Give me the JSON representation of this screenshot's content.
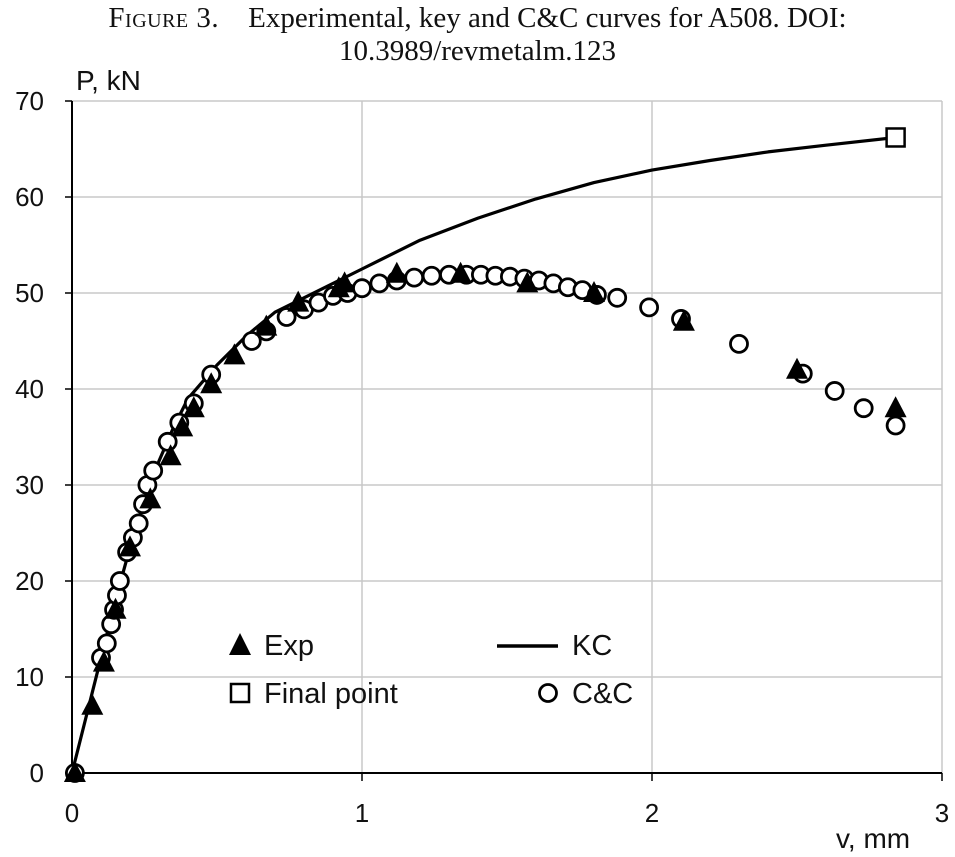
{
  "caption": {
    "label": "Figure 3.",
    "line1": "Experimental, key and C&C curves for A508. DOI:",
    "line2": "10.3989/revmetalm.123"
  },
  "chart_data": {
    "type": "scatter",
    "xlabel": "v, mm",
    "ylabel": "P, kN",
    "xlim": [
      0,
      3
    ],
    "ylim": [
      0,
      70
    ],
    "xticks": [
      0,
      1,
      2,
      3
    ],
    "yticks": [
      0,
      10,
      20,
      30,
      40,
      50,
      60,
      70
    ],
    "grid": true,
    "colors": {
      "marker": "#000000",
      "grid": "#c8c8c8",
      "line": "#000000"
    },
    "legend": {
      "placement": "inside-bottom",
      "entries": [
        {
          "label": "Exp",
          "marker": "triangle"
        },
        {
          "label": "KC",
          "marker": "line"
        },
        {
          "label": "Final point",
          "marker": "square"
        },
        {
          "label": "C&C",
          "marker": "circle"
        }
      ]
    },
    "series": [
      {
        "name": "Exp",
        "marker": "triangle",
        "x": [
          0.01,
          0.07,
          0.11,
          0.15,
          0.2,
          0.27,
          0.34,
          0.38,
          0.42,
          0.48,
          0.56,
          0.67,
          0.78,
          0.92,
          0.94,
          1.12,
          1.34,
          1.57,
          1.8,
          2.11,
          2.5,
          2.84
        ],
        "y": [
          0.0,
          7.0,
          11.5,
          17.0,
          23.5,
          28.5,
          33.0,
          36.0,
          38.0,
          40.5,
          43.5,
          46.5,
          49.0,
          50.5,
          51.0,
          52.0,
          52.0,
          51.0,
          50.0,
          47.0,
          42.0,
          38.0
        ]
      },
      {
        "name": "C&C",
        "marker": "circle",
        "x": [
          0.01,
          0.1,
          0.12,
          0.135,
          0.145,
          0.155,
          0.165,
          0.19,
          0.21,
          0.23,
          0.245,
          0.26,
          0.28,
          0.33,
          0.37,
          0.42,
          0.48,
          0.62,
          0.67,
          0.74,
          0.8,
          0.85,
          0.9,
          0.95,
          1.0,
          1.06,
          1.12,
          1.18,
          1.24,
          1.3,
          1.36,
          1.41,
          1.46,
          1.51,
          1.56,
          1.61,
          1.66,
          1.71,
          1.76,
          1.81,
          1.88,
          1.99,
          2.1,
          2.3,
          2.52,
          2.63,
          2.73,
          2.84
        ],
        "y": [
          0.0,
          12.0,
          13.5,
          15.5,
          17.0,
          18.5,
          20.0,
          23.0,
          24.5,
          26.0,
          28.0,
          30.0,
          31.5,
          34.5,
          36.5,
          38.5,
          41.5,
          45.0,
          46.0,
          47.5,
          48.3,
          49.0,
          49.7,
          50.0,
          50.5,
          51.0,
          51.3,
          51.6,
          51.8,
          51.9,
          51.9,
          51.9,
          51.8,
          51.7,
          51.5,
          51.3,
          51.0,
          50.6,
          50.3,
          49.8,
          49.5,
          48.5,
          47.3,
          44.7,
          41.6,
          39.8,
          38.0,
          36.2
        ]
      },
      {
        "name": "KC",
        "marker": "line",
        "x": [
          0.0,
          0.05,
          0.1,
          0.15,
          0.2,
          0.25,
          0.3,
          0.35,
          0.4,
          0.5,
          0.6,
          0.7,
          0.8,
          0.9,
          1.0,
          1.2,
          1.4,
          1.6,
          1.8,
          2.0,
          2.2,
          2.4,
          2.6,
          2.84
        ],
        "y": [
          0.0,
          6.0,
          12.0,
          18.0,
          23.5,
          28.5,
          32.5,
          36.0,
          39.0,
          42.5,
          45.5,
          48.0,
          49.5,
          51.0,
          52.5,
          55.5,
          57.8,
          59.8,
          61.5,
          62.8,
          63.8,
          64.7,
          65.4,
          66.2
        ]
      },
      {
        "name": "Final point",
        "marker": "square",
        "x": [
          2.84
        ],
        "y": [
          66.2
        ]
      }
    ]
  }
}
